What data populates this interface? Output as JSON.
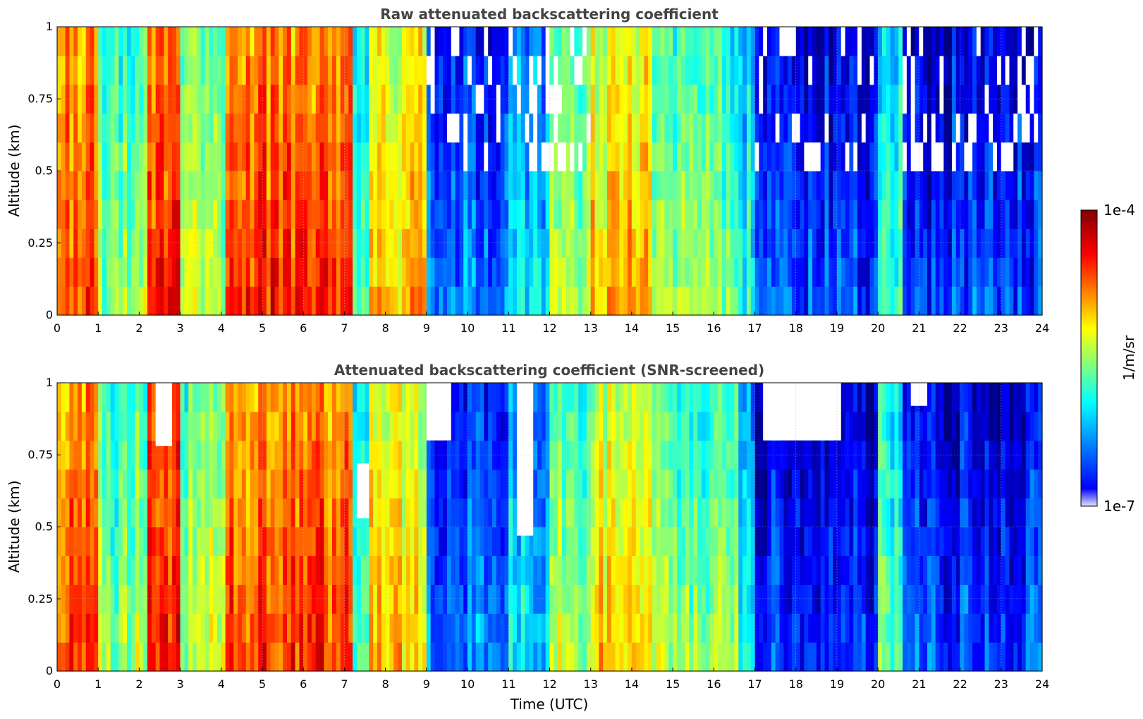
{
  "colors": {
    "jet": [
      "#00007f",
      "#0000ff",
      "#007fff",
      "#00ffff",
      "#7fff7f",
      "#ffff00",
      "#ff7f00",
      "#ff0000",
      "#7f0000"
    ],
    "missing": "#ffffff",
    "lowest": "#e0e4ff",
    "title": "#444444",
    "grid": "#bbbbbb"
  },
  "chart_data": [
    {
      "type": "heatmap",
      "title": "Raw attenuated backscattering coefficient",
      "xlabel": "",
      "ylabel": "Altitude (km)",
      "xlim": [
        0,
        24
      ],
      "ylim": [
        0,
        1
      ],
      "xticks": [
        "0",
        "1",
        "2",
        "3",
        "4",
        "5",
        "6",
        "7",
        "8",
        "9",
        "10",
        "11",
        "12",
        "13",
        "14",
        "15",
        "16",
        "17",
        "18",
        "19",
        "20",
        "21",
        "22",
        "23",
        "24"
      ],
      "yticks": [
        "0",
        "0.25",
        "0.5",
        "0.75",
        "1"
      ],
      "grid": true,
      "clim_log10": [
        -7,
        -4
      ],
      "segments_log10_near_surface": [
        {
          "t0": 0.0,
          "t1": 1.0,
          "value": -4.5
        },
        {
          "t0": 1.0,
          "t1": 2.2,
          "value": -5.4
        },
        {
          "t0": 2.2,
          "t1": 3.0,
          "value": -4.4
        },
        {
          "t0": 3.0,
          "t1": 4.1,
          "value": -5.3
        },
        {
          "t0": 4.1,
          "t1": 7.2,
          "value": -4.5
        },
        {
          "t0": 7.2,
          "t1": 7.6,
          "value": -5.6
        },
        {
          "t0": 7.6,
          "t1": 9.0,
          "value": -4.9
        },
        {
          "t0": 9.0,
          "t1": 11.0,
          "value": -6.2
        },
        {
          "t0": 11.0,
          "t1": 12.0,
          "value": -5.9
        },
        {
          "t0": 12.0,
          "t1": 13.0,
          "value": -5.3
        },
        {
          "t0": 13.0,
          "t1": 14.5,
          "value": -4.9
        },
        {
          "t0": 14.5,
          "t1": 16.6,
          "value": -5.4
        },
        {
          "t0": 16.6,
          "t1": 17.0,
          "value": -5.8
        },
        {
          "t0": 17.0,
          "t1": 20.0,
          "value": -6.4
        },
        {
          "t0": 20.0,
          "t1": 20.6,
          "value": -5.6
        },
        {
          "t0": 20.6,
          "t1": 24.0,
          "value": -6.4
        }
      ],
      "noisy_above_altitude_km": 0.45,
      "noisy_time_ranges": [
        [
          9.0,
          13.0
        ],
        [
          17.0,
          20.0
        ],
        [
          20.6,
          24.0
        ]
      ]
    },
    {
      "type": "heatmap",
      "title": "Attenuated backscattering coefficient (SNR-screened)",
      "xlabel": "Time (UTC)",
      "ylabel": "Altitude (km)",
      "xlim": [
        0,
        24
      ],
      "ylim": [
        0,
        1
      ],
      "xticks": [
        "0",
        "1",
        "2",
        "3",
        "4",
        "5",
        "6",
        "7",
        "8",
        "9",
        "10",
        "11",
        "12",
        "13",
        "14",
        "15",
        "16",
        "17",
        "18",
        "19",
        "20",
        "21",
        "22",
        "23",
        "24"
      ],
      "yticks": [
        "0",
        "0.25",
        "0.5",
        "0.75",
        "1"
      ],
      "grid": true,
      "clim_log10": [
        -7,
        -4
      ],
      "segments_log10_near_surface": [
        {
          "t0": 0.0,
          "t1": 1.0,
          "value": -4.5
        },
        {
          "t0": 1.0,
          "t1": 2.2,
          "value": -5.4
        },
        {
          "t0": 2.2,
          "t1": 3.0,
          "value": -4.4
        },
        {
          "t0": 3.0,
          "t1": 4.1,
          "value": -5.3
        },
        {
          "t0": 4.1,
          "t1": 7.2,
          "value": -4.5
        },
        {
          "t0": 7.2,
          "t1": 7.6,
          "value": -5.6
        },
        {
          "t0": 7.6,
          "t1": 9.0,
          "value": -4.9
        },
        {
          "t0": 9.0,
          "t1": 11.0,
          "value": -6.2
        },
        {
          "t0": 11.0,
          "t1": 12.0,
          "value": -5.9
        },
        {
          "t0": 12.0,
          "t1": 13.0,
          "value": -5.3
        },
        {
          "t0": 13.0,
          "t1": 14.5,
          "value": -4.9
        },
        {
          "t0": 14.5,
          "t1": 16.6,
          "value": -5.4
        },
        {
          "t0": 16.6,
          "t1": 17.0,
          "value": -5.8
        },
        {
          "t0": 17.0,
          "t1": 20.0,
          "value": -6.4
        },
        {
          "t0": 20.0,
          "t1": 20.6,
          "value": -5.6
        },
        {
          "t0": 20.6,
          "t1": 24.0,
          "value": -6.4
        }
      ],
      "screened_gaps": [
        {
          "t0": 2.4,
          "t1": 2.8,
          "alt0": 0.78,
          "alt1": 1.0
        },
        {
          "t0": 7.3,
          "t1": 7.6,
          "alt0": 0.53,
          "alt1": 0.72
        },
        {
          "t0": 9.0,
          "t1": 9.6,
          "alt0": 0.8,
          "alt1": 1.0
        },
        {
          "t0": 11.2,
          "t1": 11.6,
          "alt0": 0.47,
          "alt1": 1.0
        },
        {
          "t0": 17.2,
          "t1": 19.1,
          "alt0": 0.8,
          "alt1": 1.0
        },
        {
          "t0": 20.8,
          "t1": 21.2,
          "alt0": 0.92,
          "alt1": 1.0
        }
      ]
    }
  ],
  "colorbar": {
    "label": "1/m/sr",
    "max_label": "1e-4",
    "min_label": "1e-7",
    "log10_range": [
      -7,
      -4
    ]
  }
}
